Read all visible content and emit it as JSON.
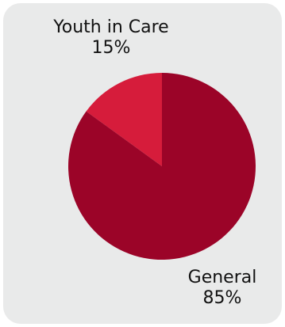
{
  "chart_data": {
    "type": "pie",
    "categories": [
      "Youth in Care",
      "General"
    ],
    "values": [
      15,
      85
    ],
    "value_labels": [
      "15%",
      "85%"
    ],
    "colors": [
      "#d61c3b",
      "#9b0428"
    ],
    "title": "",
    "start_angle_deg": 0,
    "direction": "counterclockwise"
  },
  "colors": {
    "card_background": "#e9eaea",
    "text": "#111111"
  }
}
